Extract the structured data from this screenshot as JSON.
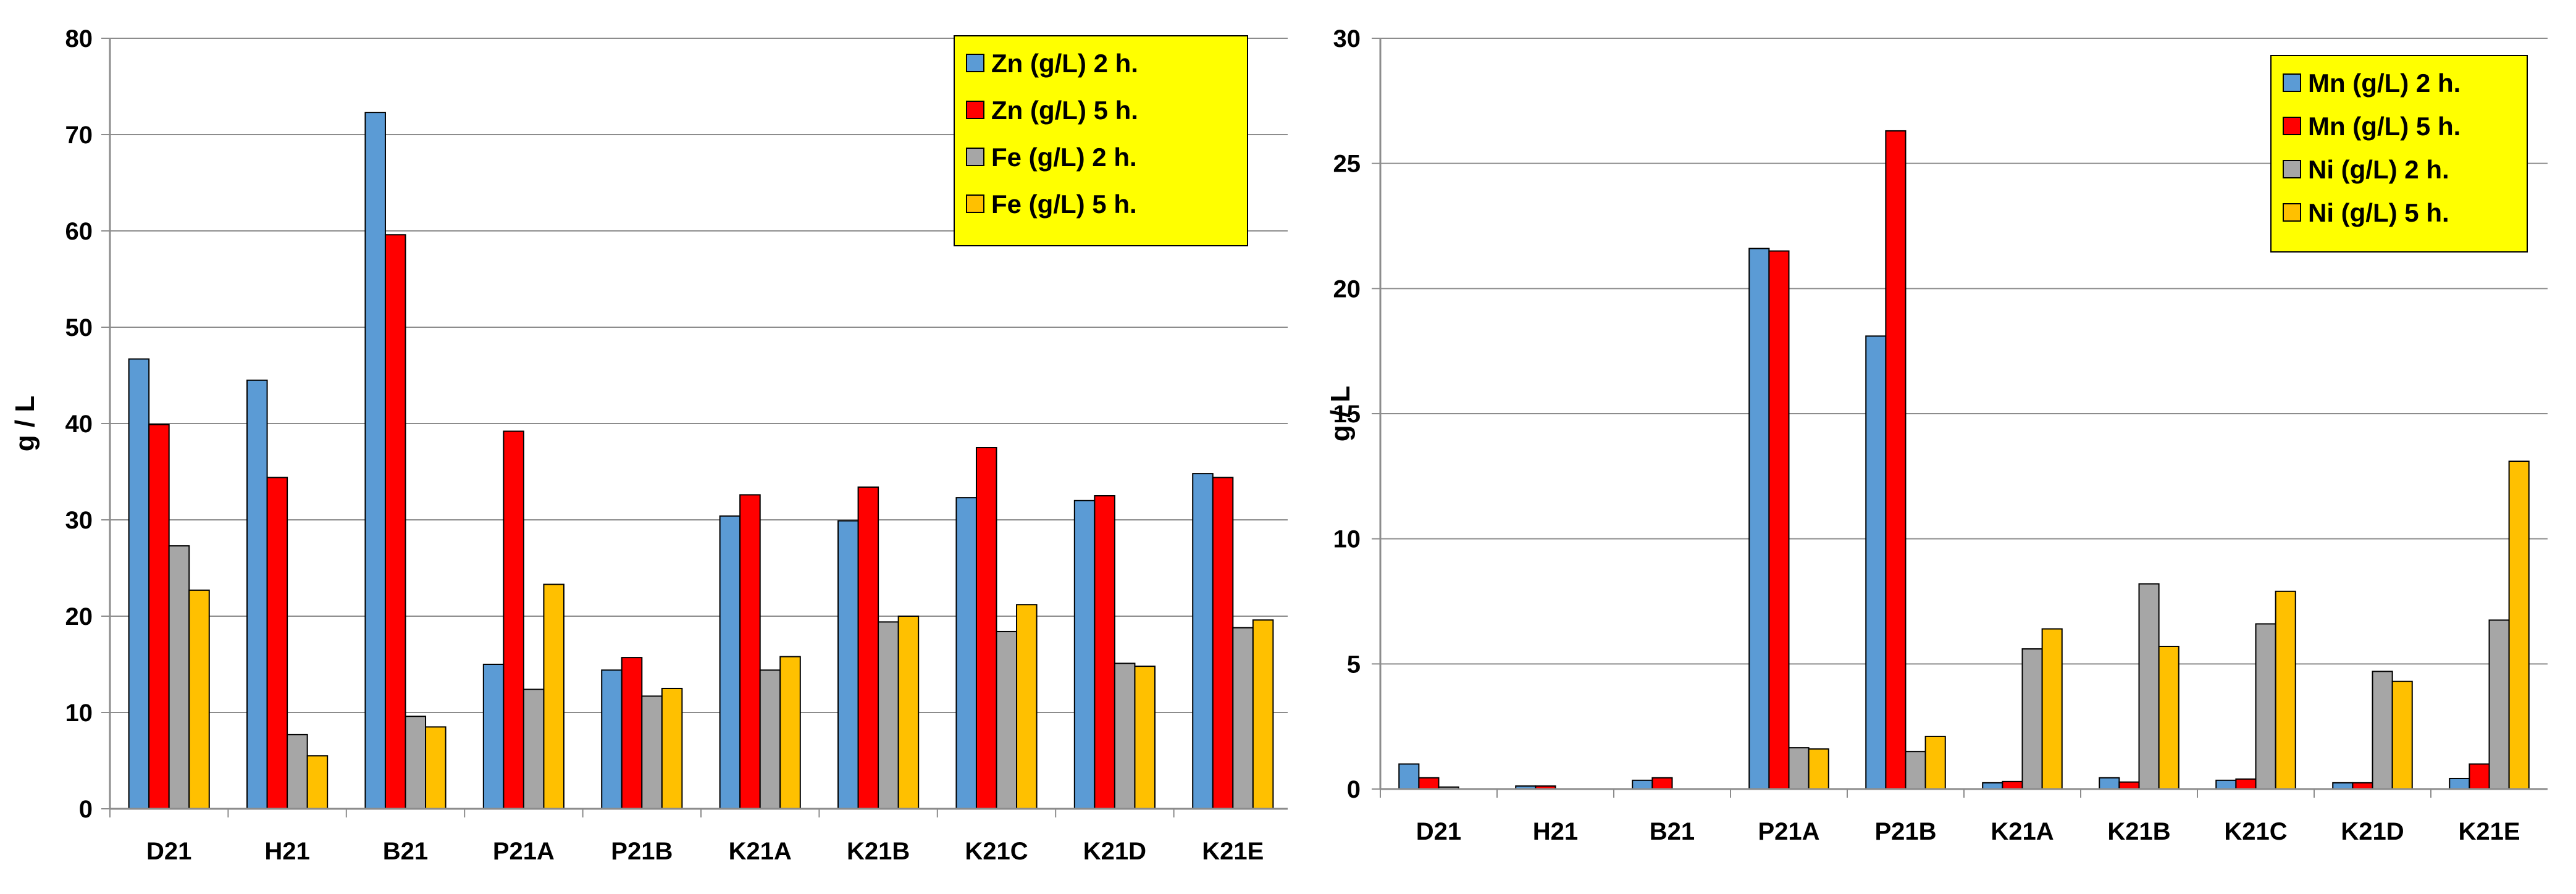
{
  "charts": [
    {
      "type": "bar",
      "title": "",
      "xlabel": "",
      "ylabel": "g / L",
      "ylim": [
        0,
        80
      ],
      "yticks": [
        "0",
        "10",
        "20",
        "30",
        "40",
        "50",
        "60",
        "70",
        "80"
      ],
      "categories": [
        "D21",
        "H21",
        "B21",
        "P21A",
        "P21B",
        "K21A",
        "K21B",
        "K21C",
        "K21D",
        "K21E"
      ],
      "series": [
        {
          "name": "Zn (g/L) 2 h.",
          "color": "#5b9bd5",
          "values": [
            46.7,
            44.5,
            72.3,
            15.0,
            14.4,
            30.4,
            29.9,
            32.3,
            32.0,
            34.8
          ]
        },
        {
          "name": "Zn (g/L) 5 h.",
          "color": "#ff0000",
          "values": [
            39.9,
            34.4,
            59.6,
            39.2,
            15.7,
            32.6,
            33.4,
            37.5,
            32.5,
            34.4
          ]
        },
        {
          "name": "Fe (g/L) 2 h.",
          "color": "#a6a6a6",
          "values": [
            27.3,
            7.7,
            9.6,
            12.4,
            11.7,
            14.4,
            19.4,
            18.4,
            15.1,
            18.8
          ]
        },
        {
          "name": "Fe (g/L) 5 h.",
          "color": "#ffc000",
          "values": [
            22.7,
            5.5,
            8.5,
            23.3,
            12.5,
            15.8,
            20.0,
            21.2,
            14.8,
            19.6
          ]
        }
      ],
      "legend": {
        "position": "top-right",
        "background": "#ffff00"
      }
    },
    {
      "type": "bar",
      "title": "",
      "xlabel": "",
      "ylabel": "g / L",
      "ylim": [
        0,
        30
      ],
      "yticks": [
        "0",
        "5",
        "10",
        "15",
        "20",
        "25",
        "30"
      ],
      "categories": [
        "D21",
        "H21",
        "B21",
        "P21A",
        "P21B",
        "K21A",
        "K21B",
        "K21C",
        "K21D",
        "K21E"
      ],
      "series": [
        {
          "name": "Mn (g/L) 2 h.",
          "color": "#5b9bd5",
          "values": [
            1.0,
            0.12,
            0.35,
            21.6,
            18.1,
            0.25,
            0.45,
            0.35,
            0.25,
            0.42
          ]
        },
        {
          "name": "Mn (g/L) 5 h.",
          "color": "#ff0000",
          "values": [
            0.45,
            0.12,
            0.45,
            21.5,
            26.3,
            0.3,
            0.28,
            0.4,
            0.25,
            1.0
          ]
        },
        {
          "name": "Ni (g/L) 2 h.",
          "color": "#a6a6a6",
          "values": [
            0.08,
            0.0,
            0.0,
            1.65,
            1.5,
            5.6,
            8.2,
            6.6,
            4.7,
            6.75
          ]
        },
        {
          "name": "Ni (g/L) 5 h.",
          "color": "#ffc000",
          "values": [
            0.0,
            0.0,
            0.0,
            1.6,
            2.1,
            6.4,
            5.7,
            7.9,
            4.3,
            13.1
          ]
        }
      ],
      "legend": {
        "position": "top-right",
        "background": "#ffff00"
      }
    }
  ]
}
